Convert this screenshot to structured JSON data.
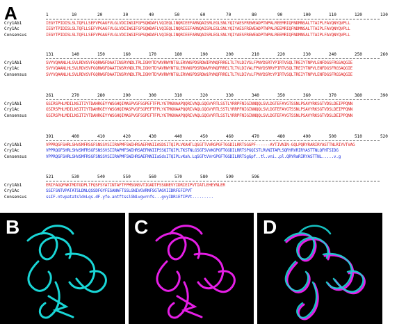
{
  "figure": {
    "panel_a_label": "A",
    "panel_b_label": "B",
    "panel_c_label": "C",
    "panel_d_label": "D"
  },
  "alignment": {
    "names": [
      "Cry1Ab1",
      "Cry1Ac",
      "Consensus"
    ],
    "blocks": [
      {
        "ruler": [
          "1",
          "10",
          "20",
          "30",
          "40",
          "50",
          "60",
          "70",
          "80",
          "90",
          "100",
          "110",
          "120",
          "130"
        ],
        "rows": [
          "IEGYTPIDISLSLTQFLLSEFVPGAGFVLGLVDIIWGIFGPSQWDAFLVQIEQLINQRIEEFARNQAISRLEGLSNLYQIYAESFREWEADPTNPALREEMRIQFNDMNSALTTAIPLFAVQNYQVPLL",
          "IEGYTPIDISLSLTQFLLSEFVPGAGFVLGLVDIIWGIFGPSQWDAFLVQIEQLINQRIEEFARNQAISRLEGLSNLYQIYAESFREWEADPTNPALREEMRIQFNDMNSALTTAIPLFAVQNYQVPLL",
          "IEGYTPIDISLSLTQFLLSEFVPGAGFVLGLVDIIWGIFGPSQWDAFLVQIEQLINQRIEEFARNQAISRLEGLSNLYQIYAESFREWEADPTNPALREEMRIQFNDMNSALTTAIPLFAVQNYQVPLL"
        ]
      },
      {
        "ruler": [
          "131",
          "140",
          "150",
          "160",
          "170",
          "180",
          "190",
          "200",
          "210",
          "220",
          "230",
          "240",
          "250",
          "260"
        ],
        "rows": [
          "SVYVQAANLHLSVLRDVSVFGQRWGFDAATINSRYNDLTRLIGNYTDYAVRWYNTGLERVWGPDSRDWIRYNQFRRELTLTVLDIVSLFPNYDSRTYPIRTVSQLTREIYTNPVLENFDGSFRGSAQGIE",
          "SVYVQAANLHLSVLRDVSVFGQRWGFDAATINSRYNDLTRLIGNYTDYAVRWYNTGLERVWGPDSRDWVRYNQFRRELTLTVLDIVALFPNYDSRRYPIRTVSQLTREIYTNPVLENFDGSFRGSAQGIE",
          "SVYVQAANLHLSVLRDVSVFGQRWGFDAATINSRYNDLTRLIGNYTDYAVRWYNTGLERVWGPDSRDWiRYNQFRRELTLTVLDIVsLFPNYDSRtYPIRTVSQLTREIYTNPVLENFDGSFRGSAQGIE"
        ]
      },
      {
        "ruler": [
          "261",
          "270",
          "280",
          "290",
          "300",
          "310",
          "320",
          "330",
          "340",
          "350",
          "360",
          "370",
          "380",
          "390"
        ],
        "rows": [
          "GSIRSPHLMDILNSITIYTDAHRGEYYWSGHQIMASPVGFSGPEFTFPLYGTMGNAAPQQRIVAQLGQGVYRTLSSTLYRRPFNIGINNQQLSVLDGTEFAYGTSSNLPSAVYRKSGTVDSLDEIPPQNN",
          "GSIRSPHLMDILNSITIYTDAHRGEYYWSGHQIMASPVGFSGPEFTFPLYGTMGNAAPQQRIVAQLGQGVYRTLSSTLYRRPFNIGINNQQLSVLDGTEFAYGTSSNLPSAVYRKSGTVDSLDEIPPQNN",
          "GSIRSPHLMDILNSITIYTDAHRGEYYWSGHQIMASPVGFSGPEFTFPLYGTMGNAAPQQRIVAQLGQGVYRTLSSTLYRRPFNIGINNQQLSVLDGTEFAYGTSSNLPSAVYRKSGTVDSLDEIPPQNN"
        ]
      },
      {
        "ruler": [
          "391",
          "400",
          "410",
          "420",
          "430",
          "440",
          "450",
          "460",
          "470",
          "480",
          "490",
          "500",
          "510",
          "520"
        ],
        "rows": [
          "VPPRQGFSHRLSHVSMFRSGFSNSSVSIIRAPMFSWIHRSAEFNNIIASDSITQIPLVKAHTLQSGTTVVRGPGFTGGDILRRTSGGPF------AYTIVNIN-GQLPQRYRARIRYASTTNLRIYVTVAG",
          "VPPRQGFSHRLSHVSMFRSGFSNSSVSIIRAPMFSWIHRSAEFNNIIPSSQITQIPLTKSTNLGSGTSVVKGPGFTGGDILRRTSPGQISTLRVNITAPLSQRYRVRIRYASTTNLQFHTSIDG",
          "VPPRQGFSHRLSHVSMFRSGFSNSSVSIIRAPMFSWIHRSAEFNNIIaSdsITQIPLvKah.LqSGTtVVrGPGFTGGDILRRTSgGpf..tl.vni..pl.QRYRaRIRYASTTNL.....v.g"
        ]
      },
      {
        "ruler": [
          "521",
          "530",
          "540",
          "550",
          "560",
          "570",
          "580",
          "590",
          "596"
        ],
        "rows": [
          "ERIFAGQFNKTMDTGDPLTFQSFSYATINTAFTFPMSGNSVTIGADTFSSGNEVYIDRIEIPVTIATLEHEYNLER",
          "SSIFSNTVPATATSLDNLQSSDFGYFESANAFTSSLGNIVGVRNFSGTAGVIIDRFEFIPVT",
          "ssIF.ntvpatatsldnLqs.dF.yfe.antftsslGNivgvrnfs...gvyIDRiEfIPVt........."
        ]
      }
    ]
  }
}
